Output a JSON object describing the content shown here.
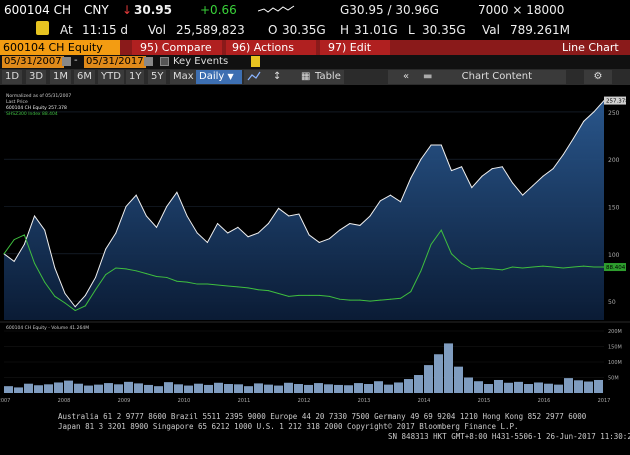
{
  "header": {
    "ticker": "600104 CH",
    "currency": "CNY",
    "arrow": "↓",
    "price": "30.95",
    "change": "+0.66",
    "range_label": "G30.95 / 30.96G",
    "size": "7000 × 18000",
    "at_label": "At",
    "time": "11:15 d",
    "vol_label": "Vol",
    "volume": "25,589,823",
    "open_label": "O",
    "open": "30.35G",
    "high_label": "H",
    "high": "31.01G",
    "low_label": "L",
    "low": "30.35G",
    "val_label": "Val",
    "value": "789.261M"
  },
  "menu": {
    "security": "600104 CH Equity",
    "compare": "95) Compare",
    "actions": "96) Actions",
    "edit": "97) Edit",
    "title": "Line Chart"
  },
  "dates": {
    "start": "05/31/2007",
    "end": "05/31/2017",
    "key_events": "Key Events"
  },
  "toolbar": {
    "periods": [
      "1D",
      "3D",
      "1M",
      "6M",
      "YTD",
      "1Y",
      "5Y",
      "Max"
    ],
    "frequency": "Daily",
    "table": "Table",
    "chart_content": "Chart Content"
  },
  "chart_data": {
    "type": "line",
    "x_labels": [
      "2007",
      "2008",
      "2009",
      "2010",
      "2011",
      "2012",
      "2013",
      "2014",
      "2015",
      "2016",
      "2017"
    ],
    "y_right_labels": [
      "250",
      "200",
      "150",
      "100",
      "50"
    ],
    "vol_labels": [
      "200M",
      "150M",
      "100M",
      "50M"
    ],
    "legend": {
      "normalized": "Normalized as of 05/31/2007",
      "last_price": "Last Price",
      "series1": "600104 CH Equity",
      "series1_value": "257.378",
      "series2": "SHSZ300 Index",
      "series2_value": "88.404",
      "volume_label": "600104 CH Equity - Volume",
      "volume_value": "41.264M"
    },
    "series": [
      {
        "name": "600104 CH Equity",
        "color": "#f0f0f0",
        "values": [
          100,
          92,
          110,
          140,
          125,
          85,
          58,
          44,
          56,
          75,
          105,
          122,
          150,
          162,
          140,
          128,
          150,
          165,
          140,
          122,
          112,
          132,
          122,
          128,
          118,
          122,
          132,
          148,
          140,
          142,
          120,
          112,
          116,
          125,
          132,
          130,
          140,
          156,
          162,
          155,
          180,
          200,
          215,
          215,
          188,
          192,
          170,
          182,
          190,
          192,
          175,
          162,
          172,
          182,
          190,
          205,
          222,
          240,
          250,
          262
        ]
      },
      {
        "name": "SHSZ300 Index",
        "color": "#3fbf3f",
        "values": [
          100,
          115,
          120,
          90,
          70,
          55,
          48,
          40,
          45,
          62,
          78,
          85,
          84,
          82,
          79,
          76,
          75,
          71,
          70,
          68,
          68,
          67,
          66,
          65,
          64,
          62,
          61,
          58,
          55,
          56,
          56,
          56,
          55,
          52,
          51,
          51,
          50,
          51,
          52,
          53,
          60,
          82,
          110,
          125,
          100,
          90,
          84,
          85,
          84,
          83,
          86,
          85,
          86,
          87,
          86,
          85,
          86,
          87,
          86,
          86
        ]
      }
    ],
    "volume": [
      22,
      18,
      30,
      25,
      28,
      34,
      40,
      30,
      24,
      27,
      32,
      28,
      36,
      31,
      26,
      22,
      35,
      28,
      24,
      30,
      26,
      33,
      29,
      28,
      22,
      31,
      27,
      24,
      33,
      29,
      26,
      32,
      28,
      26,
      25,
      32,
      29,
      38,
      27,
      34,
      45,
      58,
      90,
      125,
      160,
      85,
      50,
      38,
      29,
      42,
      33,
      36,
      29,
      34,
      30,
      27,
      48,
      41,
      37,
      42
    ]
  },
  "footer": {
    "line1": "Australia 61 2 9777 8600 Brazil 5511 2395 9000 Europe 44 20 7330 7500 Germany 49 69 9204 1210 Hong Kong 852 2977 6000",
    "line2": "Japan 81 3 3201 8900        Singapore 65 6212 1000        U.S. 1 212 318 2000        Copyright© 2017 Bloomberg Finance L.P.",
    "line3": "SN 848313 HKT  GMT+8:00 H431-5506-1 26-Jun-2017 11:30:25"
  },
  "colors": {
    "background": "#000000",
    "menu_red": "#b02020",
    "security_orange": "#f39c12",
    "price_line": "#f0f0f0",
    "index_line": "#3fbf3f",
    "area_fill": "#1d3f6f"
  }
}
